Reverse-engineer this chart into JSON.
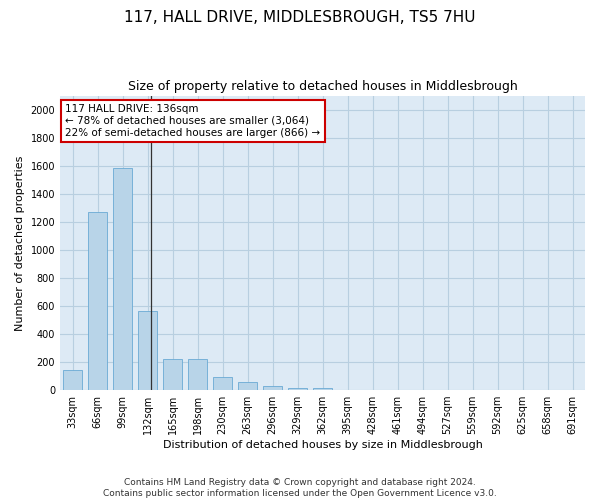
{
  "title": "117, HALL DRIVE, MIDDLESBROUGH, TS5 7HU",
  "subtitle": "Size of property relative to detached houses in Middlesbrough",
  "xlabel": "Distribution of detached houses by size in Middlesbrough",
  "ylabel": "Number of detached properties",
  "bar_color": "#b8d4e8",
  "bar_edge_color": "#6aaad4",
  "background_color": "#ffffff",
  "plot_bg_color": "#ddeaf5",
  "grid_color": "#b8cfe0",
  "annotation_box_color": "#cc0000",
  "annotation_text_line1": "117 HALL DRIVE: 136sqm",
  "annotation_text_line2": "← 78% of detached houses are smaller (3,064)",
  "annotation_text_line3": "22% of semi-detached houses are larger (866) →",
  "property_size_sqm": 136,
  "categories": [
    "33sqm",
    "66sqm",
    "99sqm",
    "132sqm",
    "165sqm",
    "198sqm",
    "230sqm",
    "263sqm",
    "296sqm",
    "329sqm",
    "362sqm",
    "395sqm",
    "428sqm",
    "461sqm",
    "494sqm",
    "527sqm",
    "559sqm",
    "592sqm",
    "625sqm",
    "658sqm",
    "691sqm"
  ],
  "values": [
    140,
    1270,
    1580,
    565,
    220,
    220,
    95,
    55,
    28,
    18,
    12,
    0,
    0,
    0,
    0,
    0,
    0,
    0,
    0,
    0,
    0
  ],
  "ylim": [
    0,
    2100
  ],
  "yticks": [
    0,
    200,
    400,
    600,
    800,
    1000,
    1200,
    1400,
    1600,
    1800,
    2000
  ],
  "footer_line1": "Contains HM Land Registry data © Crown copyright and database right 2024.",
  "footer_line2": "Contains public sector information licensed under the Open Government Licence v3.0.",
  "title_fontsize": 11,
  "subtitle_fontsize": 9,
  "axis_label_fontsize": 8,
  "tick_fontsize": 7,
  "annotation_fontsize": 7.5,
  "footer_fontsize": 6.5,
  "bar_width": 0.75
}
